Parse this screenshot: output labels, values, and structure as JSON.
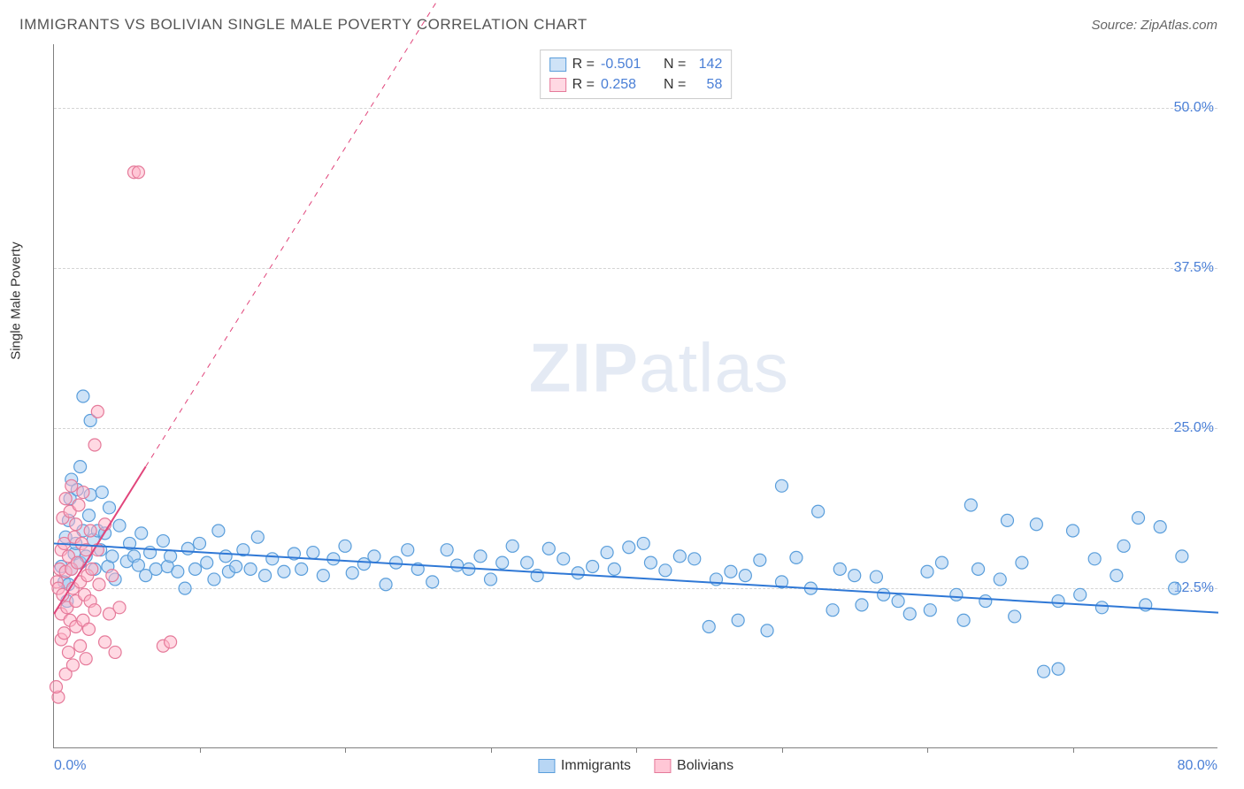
{
  "title": "IMMIGRANTS VS BOLIVIAN SINGLE MALE POVERTY CORRELATION CHART",
  "source": "Source: ZipAtlas.com",
  "ylabel": "Single Male Poverty",
  "watermark_a": "ZIP",
  "watermark_b": "atlas",
  "chart": {
    "type": "scatter",
    "xlim": [
      0,
      80
    ],
    "ylim": [
      0,
      55
    ],
    "yticks": [
      12.5,
      25.0,
      37.5,
      50.0
    ],
    "ytick_labels": [
      "12.5%",
      "25.0%",
      "37.5%",
      "50.0%"
    ],
    "xtick_positions": [
      10,
      20,
      30,
      40,
      50,
      60,
      70
    ],
    "xlabel_min": "0.0%",
    "xlabel_max": "80.0%",
    "grid_color": "#d4d4d4",
    "axis_color": "#808080",
    "point_radius": 7,
    "series": [
      {
        "name": "Immigrants",
        "fill": "rgba(160,200,240,0.50)",
        "stroke": "#5a9edb",
        "trend_color": "#2f78d6",
        "trend_style": "solid",
        "trend_width": 2,
        "trend_from": [
          0,
          16.0
        ],
        "trend_to": [
          80,
          10.6
        ],
        "r": "-0.501",
        "n": "142",
        "points": [
          [
            0.5,
            14.2
          ],
          [
            0.7,
            13.0
          ],
          [
            0.8,
            16.5
          ],
          [
            0.9,
            11.5
          ],
          [
            1.0,
            17.8
          ],
          [
            1.0,
            12.8
          ],
          [
            1.1,
            19.5
          ],
          [
            1.2,
            14.0
          ],
          [
            1.2,
            21.0
          ],
          [
            1.4,
            15.2
          ],
          [
            1.5,
            16.0
          ],
          [
            1.6,
            20.2
          ],
          [
            1.8,
            14.5
          ],
          [
            1.8,
            22.0
          ],
          [
            2.0,
            17.0
          ],
          [
            2.0,
            27.5
          ],
          [
            2.2,
            15.0
          ],
          [
            2.4,
            18.2
          ],
          [
            2.5,
            19.8
          ],
          [
            2.5,
            25.6
          ],
          [
            2.7,
            16.3
          ],
          [
            2.8,
            14.0
          ],
          [
            3.0,
            17.0
          ],
          [
            3.2,
            15.5
          ],
          [
            3.3,
            20.0
          ],
          [
            3.5,
            16.8
          ],
          [
            3.7,
            14.2
          ],
          [
            3.8,
            18.8
          ],
          [
            4.0,
            15.0
          ],
          [
            4.2,
            13.2
          ],
          [
            4.5,
            17.4
          ],
          [
            5.0,
            14.6
          ],
          [
            5.2,
            16.0
          ],
          [
            5.5,
            15.0
          ],
          [
            5.8,
            14.3
          ],
          [
            6.0,
            16.8
          ],
          [
            6.3,
            13.5
          ],
          [
            6.6,
            15.3
          ],
          [
            7.0,
            14.0
          ],
          [
            7.5,
            16.2
          ],
          [
            7.8,
            14.2
          ],
          [
            8.0,
            15.0
          ],
          [
            8.5,
            13.8
          ],
          [
            9.0,
            12.5
          ],
          [
            9.2,
            15.6
          ],
          [
            9.7,
            14.0
          ],
          [
            10.0,
            16.0
          ],
          [
            10.5,
            14.5
          ],
          [
            11.0,
            13.2
          ],
          [
            11.3,
            17.0
          ],
          [
            11.8,
            15.0
          ],
          [
            12.0,
            13.8
          ],
          [
            12.5,
            14.2
          ],
          [
            13.0,
            15.5
          ],
          [
            13.5,
            14.0
          ],
          [
            14.0,
            16.5
          ],
          [
            14.5,
            13.5
          ],
          [
            15.0,
            14.8
          ],
          [
            15.8,
            13.8
          ],
          [
            16.5,
            15.2
          ],
          [
            17.0,
            14.0
          ],
          [
            17.8,
            15.3
          ],
          [
            18.5,
            13.5
          ],
          [
            19.2,
            14.8
          ],
          [
            20.0,
            15.8
          ],
          [
            20.5,
            13.7
          ],
          [
            21.3,
            14.4
          ],
          [
            22.0,
            15.0
          ],
          [
            22.8,
            12.8
          ],
          [
            23.5,
            14.5
          ],
          [
            24.3,
            15.5
          ],
          [
            25.0,
            14.0
          ],
          [
            26.0,
            13.0
          ],
          [
            27.0,
            15.5
          ],
          [
            27.7,
            14.3
          ],
          [
            28.5,
            14.0
          ],
          [
            29.3,
            15.0
          ],
          [
            30.0,
            13.2
          ],
          [
            30.8,
            14.5
          ],
          [
            31.5,
            15.8
          ],
          [
            32.5,
            14.5
          ],
          [
            33.2,
            13.5
          ],
          [
            34.0,
            15.6
          ],
          [
            35.0,
            14.8
          ],
          [
            36.0,
            13.7
          ],
          [
            37.0,
            14.2
          ],
          [
            38.0,
            15.3
          ],
          [
            38.5,
            14.0
          ],
          [
            39.5,
            15.7
          ],
          [
            40.5,
            16.0
          ],
          [
            41.0,
            14.5
          ],
          [
            42.0,
            13.9
          ],
          [
            43.0,
            15.0
          ],
          [
            44.0,
            14.8
          ],
          [
            45.0,
            9.5
          ],
          [
            45.5,
            13.2
          ],
          [
            46.5,
            13.8
          ],
          [
            47.0,
            10.0
          ],
          [
            47.5,
            13.5
          ],
          [
            48.5,
            14.7
          ],
          [
            49.0,
            9.2
          ],
          [
            50.0,
            13.0
          ],
          [
            50.0,
            20.5
          ],
          [
            51.0,
            14.9
          ],
          [
            52.0,
            12.5
          ],
          [
            52.5,
            18.5
          ],
          [
            53.5,
            10.8
          ],
          [
            54.0,
            14.0
          ],
          [
            55.0,
            13.5
          ],
          [
            55.5,
            11.2
          ],
          [
            56.5,
            13.4
          ],
          [
            57.0,
            12.0
          ],
          [
            58.0,
            11.5
          ],
          [
            58.8,
            10.5
          ],
          [
            60.0,
            13.8
          ],
          [
            60.2,
            10.8
          ],
          [
            61.0,
            14.5
          ],
          [
            62.0,
            12.0
          ],
          [
            62.5,
            10.0
          ],
          [
            63.0,
            19.0
          ],
          [
            63.5,
            14.0
          ],
          [
            64.0,
            11.5
          ],
          [
            65.0,
            13.2
          ],
          [
            65.5,
            17.8
          ],
          [
            66.0,
            10.3
          ],
          [
            66.5,
            14.5
          ],
          [
            67.5,
            17.5
          ],
          [
            68.0,
            6.0
          ],
          [
            69.0,
            6.2
          ],
          [
            69.0,
            11.5
          ],
          [
            70.0,
            17.0
          ],
          [
            70.5,
            12.0
          ],
          [
            71.5,
            14.8
          ],
          [
            72.0,
            11.0
          ],
          [
            73.0,
            13.5
          ],
          [
            73.5,
            15.8
          ],
          [
            74.5,
            18.0
          ],
          [
            75.0,
            11.2
          ],
          [
            76.0,
            17.3
          ],
          [
            77.0,
            12.5
          ],
          [
            77.5,
            15.0
          ]
        ]
      },
      {
        "name": "Bolivians",
        "fill": "rgba(255,180,200,0.50)",
        "stroke": "#e57a9a",
        "trend_color": "#e1457b",
        "trend_style": "solid",
        "trend_width": 2,
        "trend_from": [
          0,
          10.5
        ],
        "trend_to": [
          6.3,
          22.0
        ],
        "trend_dash_from": [
          6.3,
          22.0
        ],
        "trend_dash_to": [
          26.5,
          58.7
        ],
        "r": "0.258",
        "n": "58",
        "points": [
          [
            0.2,
            13.0
          ],
          [
            0.3,
            4.0
          ],
          [
            0.3,
            12.5
          ],
          [
            0.4,
            14.0
          ],
          [
            0.5,
            10.5
          ],
          [
            0.5,
            15.5
          ],
          [
            0.5,
            8.5
          ],
          [
            0.6,
            18.0
          ],
          [
            0.6,
            12.0
          ],
          [
            0.7,
            9.0
          ],
          [
            0.7,
            16.0
          ],
          [
            0.8,
            13.8
          ],
          [
            0.8,
            5.8
          ],
          [
            0.8,
            19.5
          ],
          [
            0.9,
            11.0
          ],
          [
            1.0,
            15.0
          ],
          [
            1.0,
            7.5
          ],
          [
            1.1,
            18.5
          ],
          [
            1.1,
            10.0
          ],
          [
            1.2,
            14.0
          ],
          [
            1.2,
            20.5
          ],
          [
            1.3,
            12.5
          ],
          [
            1.3,
            6.5
          ],
          [
            1.4,
            16.5
          ],
          [
            1.5,
            9.5
          ],
          [
            1.5,
            17.5
          ],
          [
            1.5,
            11.5
          ],
          [
            1.6,
            14.5
          ],
          [
            1.7,
            19.0
          ],
          [
            1.8,
            8.0
          ],
          [
            1.8,
            13.0
          ],
          [
            1.9,
            16.0
          ],
          [
            2.0,
            10.0
          ],
          [
            2.0,
            20.0
          ],
          [
            2.1,
            12.0
          ],
          [
            2.2,
            15.5
          ],
          [
            2.2,
            7.0
          ],
          [
            2.3,
            13.5
          ],
          [
            2.4,
            9.3
          ],
          [
            2.5,
            17.0
          ],
          [
            2.5,
            11.5
          ],
          [
            2.6,
            14.0
          ],
          [
            2.8,
            10.8
          ],
          [
            2.8,
            23.7
          ],
          [
            3.0,
            15.5
          ],
          [
            3.0,
            26.3
          ],
          [
            3.1,
            12.8
          ],
          [
            3.5,
            8.3
          ],
          [
            3.5,
            17.5
          ],
          [
            3.8,
            10.5
          ],
          [
            4.0,
            13.5
          ],
          [
            4.2,
            7.5
          ],
          [
            4.5,
            11.0
          ],
          [
            5.5,
            45.0
          ],
          [
            5.8,
            45.0
          ],
          [
            7.5,
            8.0
          ],
          [
            8.0,
            8.3
          ],
          [
            0.15,
            4.8
          ]
        ]
      }
    ]
  },
  "legend_bottom": [
    {
      "label": "Immigrants",
      "fill": "rgba(160,200,240,0.75)",
      "stroke": "#5a9edb"
    },
    {
      "label": "Bolivians",
      "fill": "rgba(255,180,200,0.75)",
      "stroke": "#e57a9a"
    }
  ]
}
